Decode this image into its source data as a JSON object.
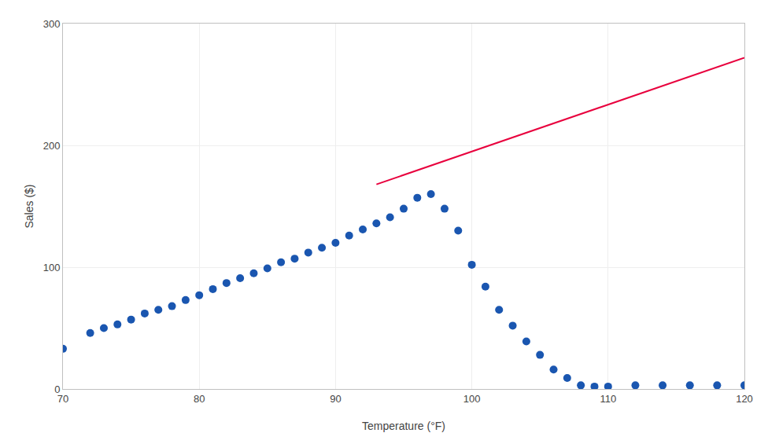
{
  "chart_data": {
    "type": "scatter",
    "xlabel": "Temperature (°F)",
    "ylabel": "Sales ($)",
    "xlim": [
      70,
      120
    ],
    "ylim": [
      0,
      300
    ],
    "xticks": [
      70,
      80,
      90,
      100,
      110,
      120
    ],
    "yticks": [
      0,
      100,
      200,
      300
    ],
    "grid": true,
    "series": [
      {
        "type": "scatter",
        "color": "#1a56b0",
        "x": [
          70,
          72,
          73,
          74,
          75,
          76,
          77,
          78,
          79,
          80,
          81,
          82,
          83,
          84,
          85,
          86,
          87,
          88,
          89,
          90,
          91,
          92,
          93,
          94,
          95,
          96,
          97,
          98,
          99,
          100,
          101,
          102,
          103,
          104,
          105,
          106,
          107,
          108,
          109,
          110,
          112,
          114,
          116,
          118,
          120
        ],
        "values": [
          33,
          46,
          50,
          53,
          57,
          62,
          65,
          68,
          73,
          77,
          82,
          87,
          91,
          95,
          99,
          104,
          107,
          112,
          116,
          120,
          126,
          131,
          136,
          141,
          148,
          157,
          160,
          148,
          130,
          102,
          84,
          65,
          52,
          39,
          28,
          16,
          9,
          3,
          2,
          2,
          3,
          3,
          3,
          3,
          3
        ]
      },
      {
        "type": "line",
        "color": "#e8003d",
        "x": [
          93,
          120
        ],
        "values": [
          168,
          272
        ]
      }
    ]
  }
}
